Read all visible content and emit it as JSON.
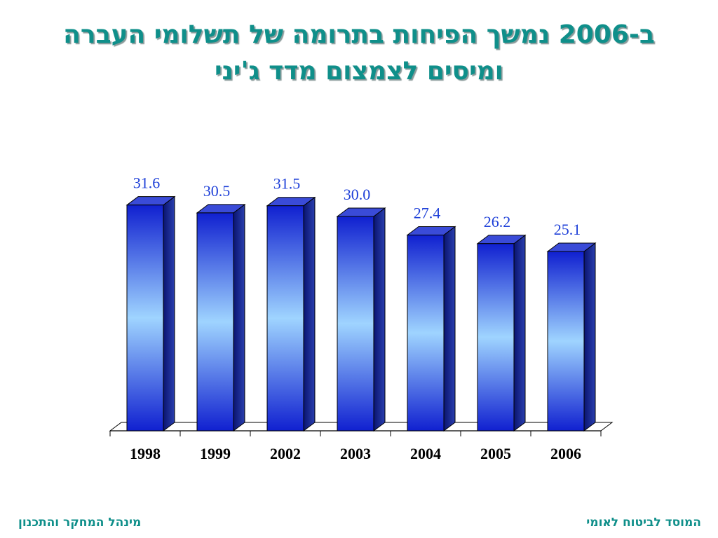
{
  "title": {
    "line1": "ב-2006 נמשך הפיחות בתרומה של תשלומי העברה",
    "line2": "ומיסים לצמצום מדד ג'יני"
  },
  "footer": {
    "left": "מינהל המחקר והתכנון",
    "right": "המוסד לביטוח לאומי"
  },
  "colors": {
    "title": "#0f8f8a",
    "bar_dark": "#1020d0",
    "bar_light": "#9fd4ff",
    "label": "#1d3fd8"
  },
  "chart_data": {
    "type": "bar",
    "title": "ב-2006 נמשך הפיחות בתרומה של תשלומי העברה ומיסים לצמצום מדד ג'יני",
    "categories": [
      "1998",
      "1999",
      "2002",
      "2003",
      "2004",
      "2005",
      "2006"
    ],
    "values": [
      31.6,
      30.5,
      31.5,
      30.0,
      27.4,
      26.2,
      25.1
    ],
    "data_labels": [
      "31.6",
      "30.5",
      "31.5",
      "30.0",
      "27.4",
      "26.2",
      "25.1"
    ],
    "xlabel": "",
    "ylabel": "",
    "grid": false,
    "legend": "none"
  }
}
